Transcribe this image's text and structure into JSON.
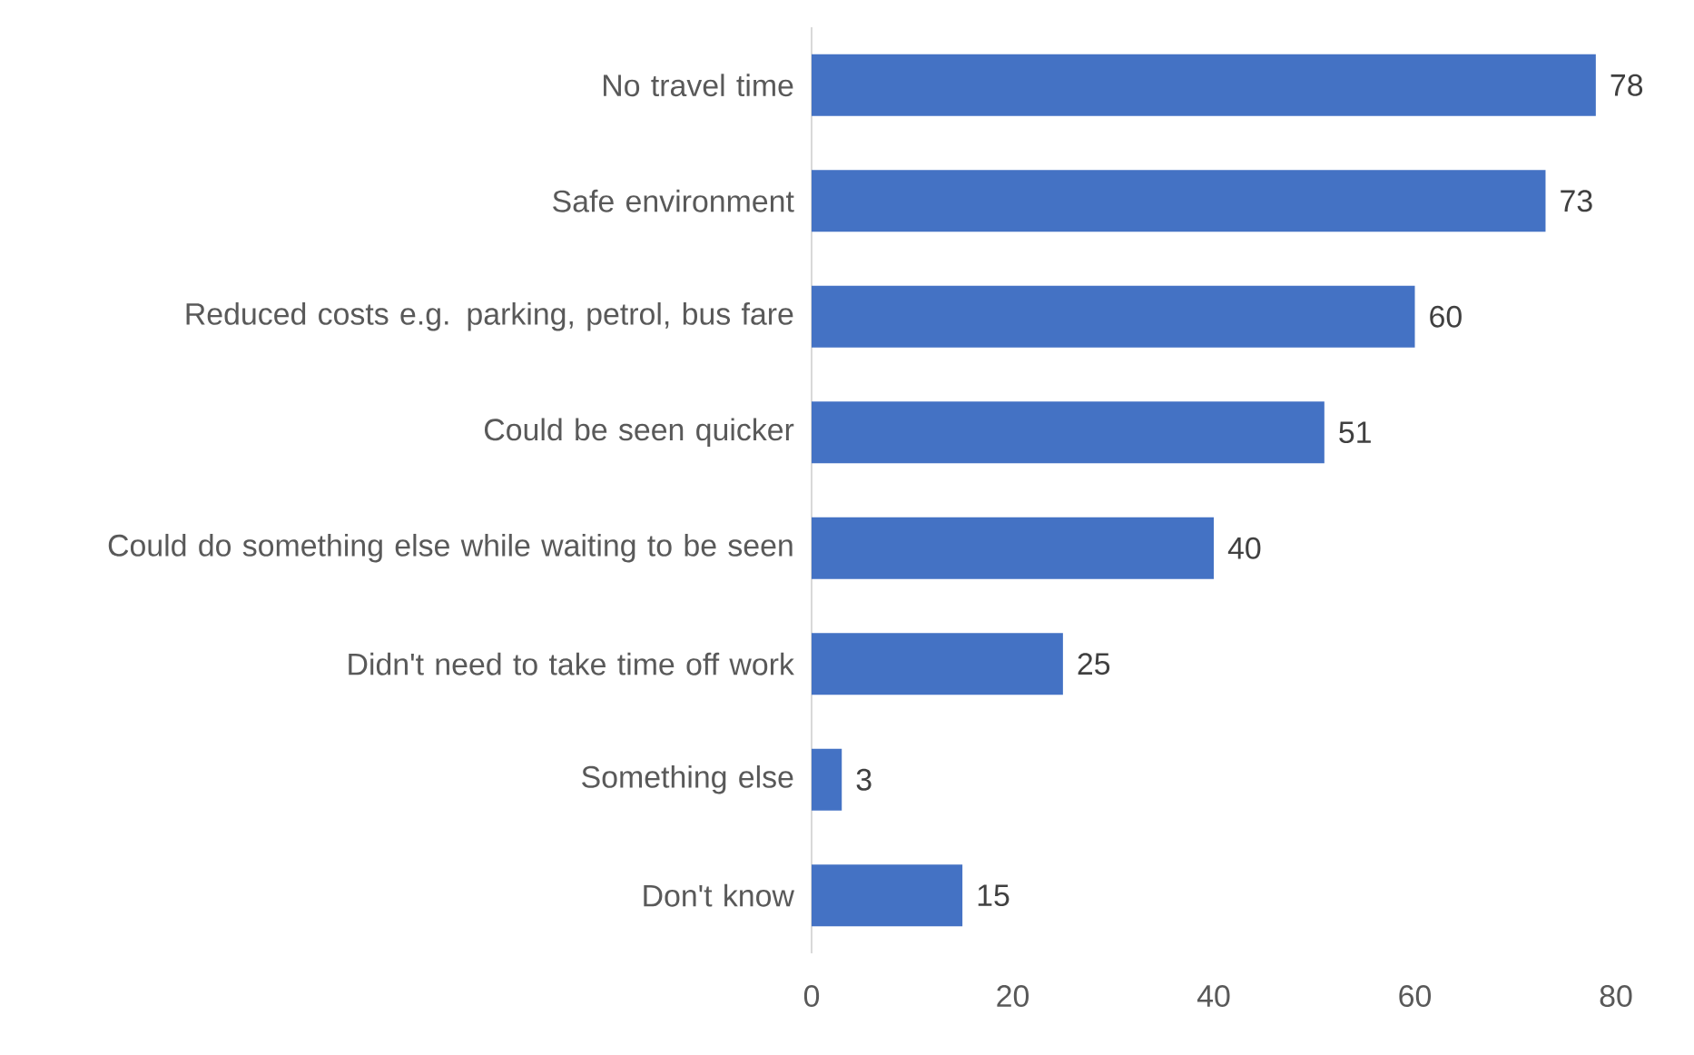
{
  "chart_data": {
    "type": "bar",
    "orientation": "horizontal",
    "categories": [
      "No travel time",
      "Safe environment",
      "Reduced costs e.g. parking, petrol, bus fare",
      "Could be seen quicker",
      "Could do something else while waiting to be seen",
      "Didn't need to take time off work",
      "Something else",
      "Don't know"
    ],
    "values": [
      78,
      73,
      60,
      51,
      40,
      25,
      3,
      15
    ],
    "color": "#4472c4",
    "xlim": [
      0,
      80
    ],
    "xticks": [
      0,
      20,
      40,
      60,
      80
    ],
    "data_labels": true,
    "grid": false
  }
}
